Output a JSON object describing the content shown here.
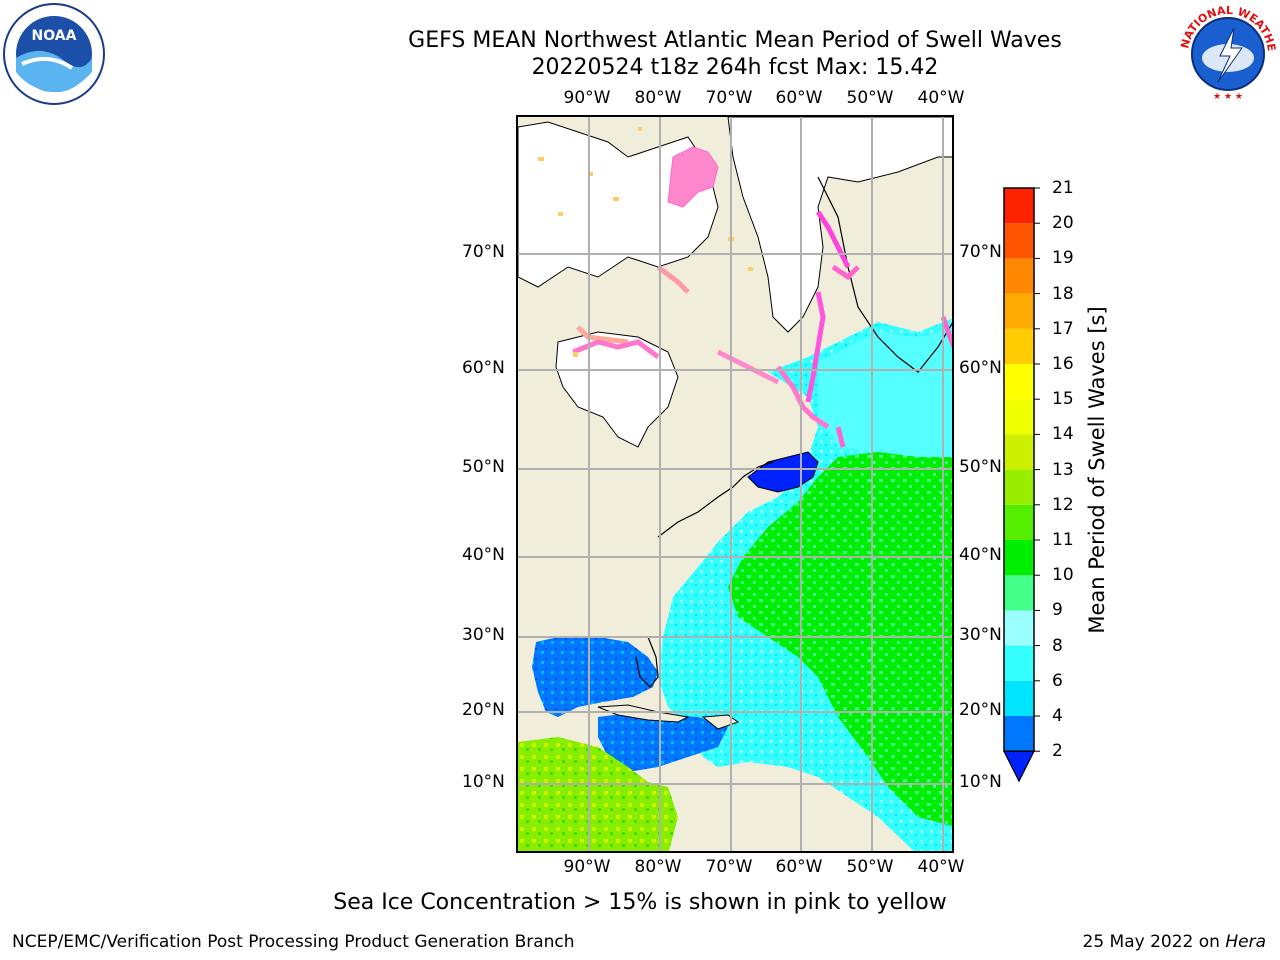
{
  "header": {
    "title_line1": "GEFS MEAN Northwest Atlantic Mean Period of Swell Waves",
    "title_line2": "20220524 t18z 264h fcst   Max: 15.42"
  },
  "logos": {
    "left": "noaa-logo",
    "left_text": "NOAA",
    "right": "national-weather-service-logo",
    "right_text": "NATIONAL WEATHER SERVICE"
  },
  "map": {
    "lon_ticks": [
      "90°W",
      "80°W",
      "70°W",
      "60°W",
      "50°W",
      "40°W"
    ],
    "lat_ticks": [
      "70°N",
      "60°N",
      "50°N",
      "40°N",
      "30°N",
      "20°N",
      "10°N"
    ],
    "land_color": "#f0eedb",
    "grid_color": "#b0b0b0",
    "ice_colors": [
      "#ff66cc",
      "#ff99cc",
      "#ffcc66",
      "#ffee44"
    ]
  },
  "colorbar": {
    "title": "Mean Period of Swell Waves [s]",
    "levels": [
      "2",
      "4",
      "6",
      "8",
      "9",
      "10",
      "11",
      "12",
      "13",
      "14",
      "15",
      "16",
      "17",
      "18",
      "19",
      "20",
      "21"
    ],
    "colors": [
      "#0077ff",
      "#00e5ff",
      "#33ffff",
      "#99ffff",
      "#44ff88",
      "#00ee00",
      "#55ee00",
      "#99ee00",
      "#ccf000",
      "#eeff00",
      "#ffff00",
      "#ffcc00",
      "#ffaa00",
      "#ff8800",
      "#ff5500",
      "#ff2200"
    ],
    "under_color": "#0022ff",
    "over_color": "#ff0000"
  },
  "caption": "Sea Ice Concentration > 15% is shown in pink to yellow",
  "footer": {
    "left": "NCEP/EMC/Verification Post Processing Product Generation Branch",
    "right_date": "25 May 2022 on ",
    "right_machine": "Hera"
  }
}
